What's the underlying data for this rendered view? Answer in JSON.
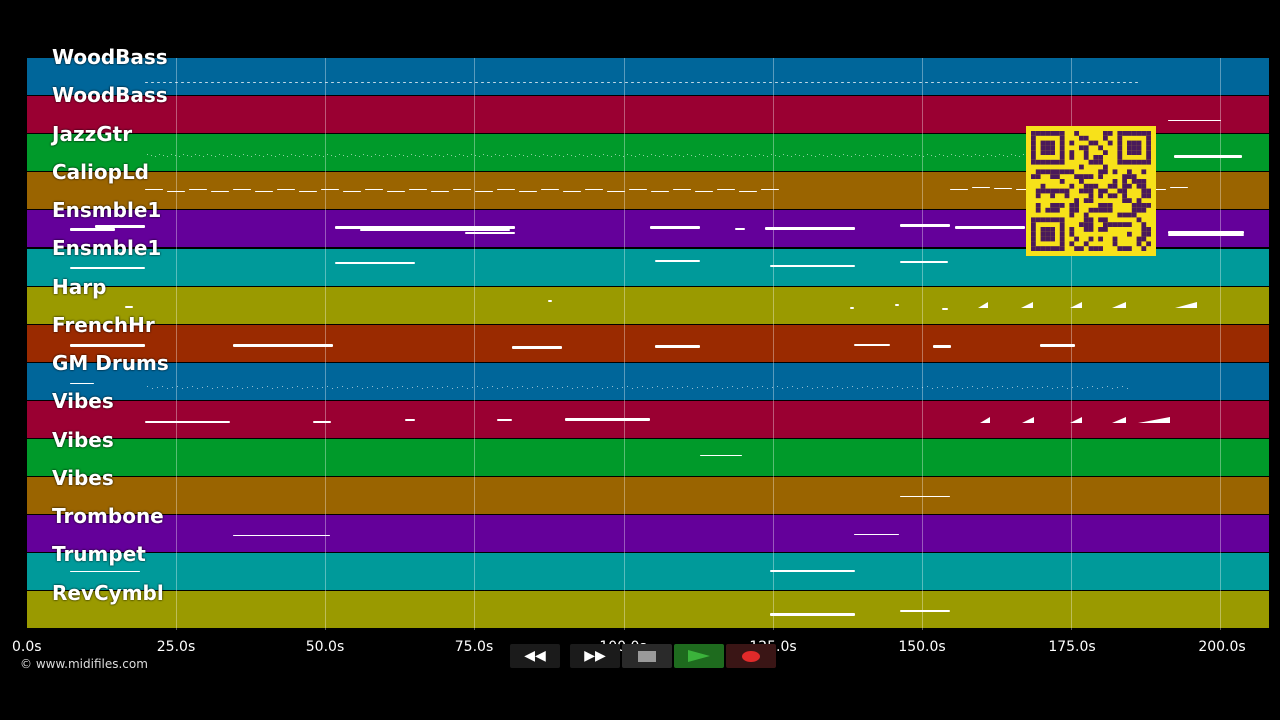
{
  "tracks": [
    {
      "name": "WoodBass",
      "color": "#00669a"
    },
    {
      "name": "WoodBass",
      "color": "#9a0032"
    },
    {
      "name": "JazzGtr",
      "color": "#009a2a"
    },
    {
      "name": "CaliopLd",
      "color": "#9a6400"
    },
    {
      "name": "Ensmble1",
      "color": "#64009a"
    },
    {
      "name": "Ensmble1",
      "color": "#009a9a"
    },
    {
      "name": "Harp",
      "color": "#9a9a00"
    },
    {
      "name": "FrenchHr",
      "color": "#9a2a00"
    },
    {
      "name": "GM Drums",
      "color": "#00669a"
    },
    {
      "name": "Vibes",
      "color": "#9a0032"
    },
    {
      "name": "Vibes",
      "color": "#009a2a"
    },
    {
      "name": "Vibes",
      "color": "#9a6400"
    },
    {
      "name": "Trombone",
      "color": "#64009a"
    },
    {
      "name": "Trumpet",
      "color": "#009a9a"
    },
    {
      "name": "RevCymbl",
      "color": "#9a9a00"
    }
  ],
  "timeline": {
    "ticks": [
      "0.0s",
      "25.0s",
      "50.0s",
      "75.0s",
      "100.0s",
      "125.0s",
      "150.0s",
      "175.0s",
      "200.0s"
    ]
  },
  "copyright": "© www.midifiles.com",
  "transport": {
    "rewind_label": "◀◀",
    "forward_label": "▶▶",
    "stop_icon": "stop-icon",
    "play_icon": "play-icon",
    "record_icon": "record-icon",
    "play_color": "#3bb33b",
    "record_color": "#e02a2a"
  },
  "qr_code": {
    "color": "#f7e11a",
    "dark": "#4a1a5a"
  }
}
